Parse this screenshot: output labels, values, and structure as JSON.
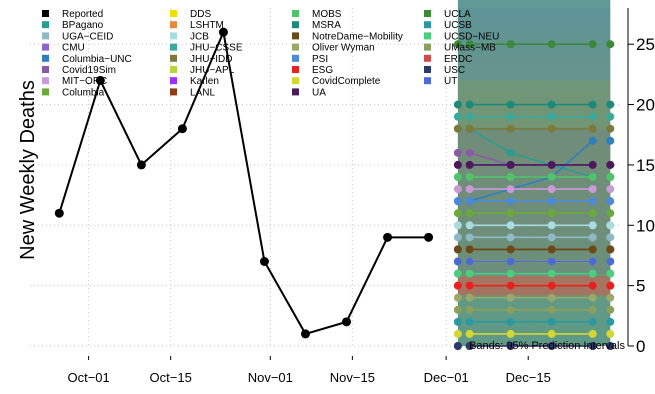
{
  "chart_data": {
    "type": "line",
    "ylabel": "New Weekly Deaths",
    "ylim": [
      0,
      28
    ],
    "yticks": [
      0,
      5,
      10,
      15,
      20,
      25
    ],
    "x_ticks": [
      {
        "date": "2020-10-01",
        "label": "Oct−01"
      },
      {
        "date": "2020-10-15",
        "label": "Oct−15"
      },
      {
        "date": "2020-11-01",
        "label": "Nov−01"
      },
      {
        "date": "2020-11-15",
        "label": "Nov−15"
      },
      {
        "date": "2020-12-01",
        "label": "Dec−01"
      },
      {
        "date": "2020-12-15",
        "label": "Dec−15"
      }
    ],
    "xlim": [
      "2020-09-21",
      "2020-12-31"
    ],
    "grid": true,
    "legend_position": "top-left",
    "reported": {
      "name": "Reported",
      "color": "#000000",
      "points": [
        {
          "x": "2020-09-26",
          "y": 11
        },
        {
          "x": "2020-10-03",
          "y": 22
        },
        {
          "x": "2020-10-10",
          "y": 15
        },
        {
          "x": "2020-10-17",
          "y": 18
        },
        {
          "x": "2020-10-24",
          "y": 26
        },
        {
          "x": "2020-10-31",
          "y": 7
        },
        {
          "x": "2020-11-07",
          "y": 1
        },
        {
          "x": "2020-11-14",
          "y": 2
        },
        {
          "x": "2020-11-21",
          "y": 9
        },
        {
          "x": "2020-11-28",
          "y": 9
        }
      ]
    },
    "forecast_dates": [
      "2020-12-05",
      "2020-12-12",
      "2020-12-19",
      "2020-12-26"
    ],
    "band": {
      "note": "Bands: 95% Prediction Intervals",
      "x_start": "2020-12-03",
      "x_end": "2020-12-29"
    },
    "models": [
      {
        "name": "BPagano",
        "color": "#2a9d8f",
        "values": [
          18,
          16,
          15,
          14
        ]
      },
      {
        "name": "UGA−CEID",
        "color": "#8fb9c7",
        "values": [
          9,
          9,
          9,
          9
        ]
      },
      {
        "name": "CMU",
        "color": "#8f63c9",
        "values": [
          15,
          15,
          15,
          15
        ]
      },
      {
        "name": "Columbia−UNC",
        "color": "#2f7fbf",
        "values": [
          12,
          13,
          14,
          17
        ]
      },
      {
        "name": "Covid19Sim",
        "color": "#8a5aa6",
        "values": [
          16,
          15,
          15,
          15
        ]
      },
      {
        "name": "MIT−ORC",
        "color": "#c99ad6",
        "values": [
          13,
          13,
          13,
          13
        ]
      },
      {
        "name": "Columbia",
        "color": "#6aaa3a",
        "values": [
          11,
          11,
          11,
          11
        ]
      },
      {
        "name": "DDS",
        "color": "#f0e000",
        "values": [
          7,
          7,
          7,
          7
        ]
      },
      {
        "name": "LSHTM",
        "color": "#e58a3c",
        "values": [
          5,
          5,
          5,
          5
        ]
      },
      {
        "name": "JCB",
        "color": "#a8dce0",
        "values": [
          10,
          10,
          10,
          10
        ]
      },
      {
        "name": "JHU−CSSE",
        "color": "#3aa89a",
        "values": [
          19,
          19,
          19,
          19
        ]
      },
      {
        "name": "JHU−IDD",
        "color": "#7a7a3a",
        "values": [
          18,
          18,
          18,
          18
        ]
      },
      {
        "name": "JHU−APL",
        "color": "#b8d43a",
        "values": [
          8,
          8,
          8,
          8
        ]
      },
      {
        "name": "Karlen",
        "color": "#9b30ff",
        "values": [
          6,
          6,
          6,
          6
        ]
      },
      {
        "name": "LANL",
        "color": "#8b3a1a",
        "values": [
          8,
          8,
          8,
          8
        ]
      },
      {
        "name": "MOBS",
        "color": "#4fc46a",
        "values": [
          14,
          14,
          14,
          14
        ]
      },
      {
        "name": "MSRA",
        "color": "#1a8a7a",
        "values": [
          20,
          20,
          20,
          20
        ]
      },
      {
        "name": "NotreDame−Mobility",
        "color": "#6a4a1a",
        "values": [
          8,
          8,
          8,
          8
        ]
      },
      {
        "name": "Oliver Wyman",
        "color": "#9aa86a",
        "values": [
          4,
          4,
          4,
          4
        ]
      },
      {
        "name": "PSI",
        "color": "#4a8ad6",
        "values": [
          12,
          12,
          12,
          12
        ]
      },
      {
        "name": "ESG",
        "color": "#e82020",
        "values": [
          5,
          5,
          5,
          5
        ]
      },
      {
        "name": "CovidComplete",
        "color": "#d6d630",
        "values": [
          1,
          1,
          1,
          1
        ]
      },
      {
        "name": "UA",
        "color": "#4a1a5a",
        "values": [
          15,
          15,
          15,
          15
        ]
      },
      {
        "name": "UCLA",
        "color": "#3a8a3a",
        "values": [
          25,
          25,
          25,
          25
        ]
      },
      {
        "name": "UCSB",
        "color": "#2a9aa0",
        "values": [
          2,
          2,
          2,
          2
        ]
      },
      {
        "name": "UCSD−NEU",
        "color": "#4ad07a",
        "values": [
          6,
          6,
          6,
          6
        ]
      },
      {
        "name": "UMass−MB",
        "color": "#8aa05a",
        "values": [
          3,
          3,
          3,
          3
        ]
      },
      {
        "name": "ERDC",
        "color": "#d04a4a",
        "values": [
          0,
          0,
          0,
          0
        ]
      },
      {
        "name": "USC",
        "color": "#2a3a6a",
        "values": [
          0,
          0,
          0,
          0
        ]
      },
      {
        "name": "UT",
        "color": "#4a6ad6",
        "values": [
          7,
          7,
          7,
          7
        ]
      }
    ]
  }
}
